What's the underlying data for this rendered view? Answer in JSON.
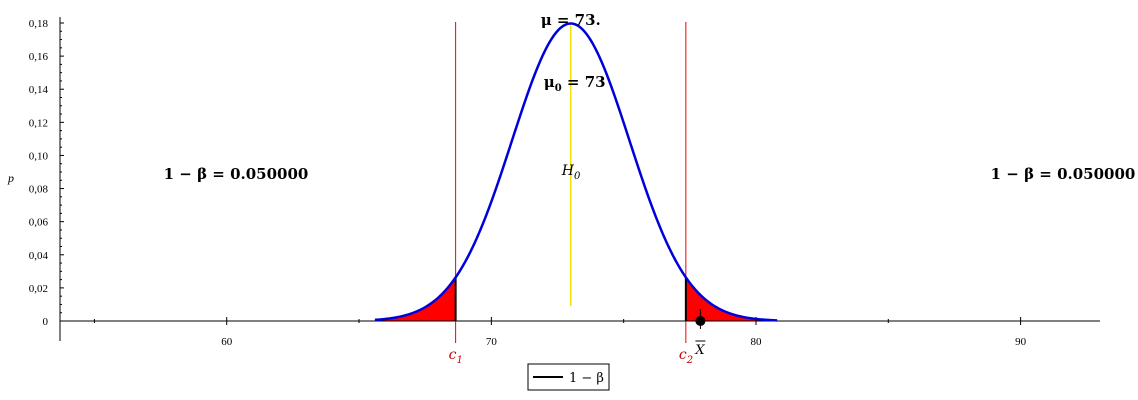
{
  "chart_data": {
    "type": "area",
    "title": "",
    "xlabel": "",
    "ylabel": "p",
    "xlim": [
      53.7,
      93.0
    ],
    "ylim": [
      0,
      0.18
    ],
    "xticks": [
      60,
      70,
      80,
      90
    ],
    "xtick_labels": [
      "60",
      "70",
      "80",
      "90"
    ],
    "yticks": [
      0,
      0.02,
      0.04,
      0.06,
      0.08,
      0.1,
      0.12,
      0.14,
      0.16,
      0.18
    ],
    "ytick_labels": [
      "0",
      "0,02",
      "0,04",
      "0,06",
      "0,08",
      "0,10",
      "0,12",
      "0,14",
      "0,16",
      "0,18"
    ],
    "distribution": {
      "name": "1 − β",
      "mean": 73,
      "sd": 2.22,
      "x_from": 65.6,
      "x_to": 80.8,
      "color": "#0000dd"
    },
    "critical_values": [
      {
        "label": "c",
        "subscript": "1",
        "x": 68.65
      },
      {
        "label": "c",
        "subscript": "2",
        "x": 77.35
      }
    ],
    "critical_color": "#ee0000",
    "shaded_color": "#ff0000",
    "mean_line": {
      "x": 73,
      "color": "#f4e400"
    },
    "observed": {
      "label": "X",
      "x": 77.9
    },
    "annotations": {
      "mu": "μ = 73.",
      "mu0_main": "μ",
      "mu0_sub": "0",
      "mu0_rest": " = 73",
      "h0_main": "H",
      "h0_sub": "0",
      "power_left": "1 − β = 0.050000",
      "power_right": "1 − β = 0.050000"
    },
    "legend": {
      "position": "bottom-center",
      "entries": [
        "1 − β"
      ]
    }
  }
}
